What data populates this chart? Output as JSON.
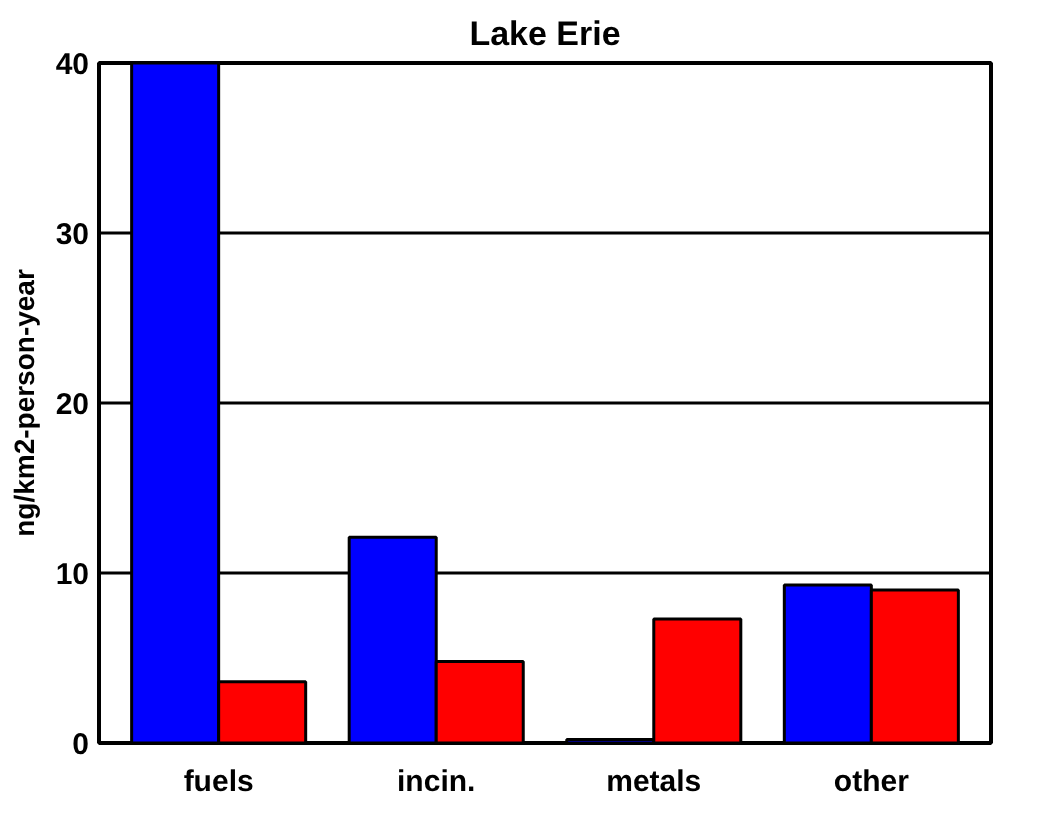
{
  "chart_data": {
    "type": "bar",
    "title": "Lake Erie",
    "ylabel": "ng/km2-person-year",
    "categories": [
      "fuels",
      "incin.",
      "metals",
      "other"
    ],
    "series": [
      {
        "color": "#0000ff",
        "values": [
          40,
          12.1,
          0.2,
          9.3
        ]
      },
      {
        "color": "#ff0000",
        "values": [
          3.6,
          4.8,
          7.3,
          9.0
        ]
      }
    ],
    "ylim": [
      0,
      40
    ],
    "yticks": [
      0,
      10,
      20,
      30,
      40
    ],
    "grid": "y"
  }
}
